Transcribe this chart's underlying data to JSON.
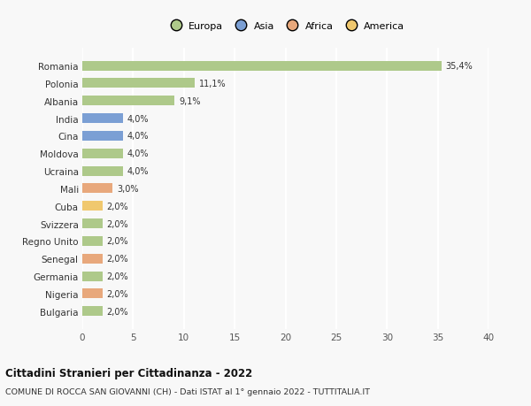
{
  "categories": [
    "Romania",
    "Polonia",
    "Albania",
    "India",
    "Cina",
    "Moldova",
    "Ucraina",
    "Mali",
    "Cuba",
    "Svizzera",
    "Regno Unito",
    "Senegal",
    "Germania",
    "Nigeria",
    "Bulgaria"
  ],
  "values": [
    35.4,
    11.1,
    9.1,
    4.0,
    4.0,
    4.0,
    4.0,
    3.0,
    2.0,
    2.0,
    2.0,
    2.0,
    2.0,
    2.0,
    2.0
  ],
  "labels": [
    "35,4%",
    "11,1%",
    "9,1%",
    "4,0%",
    "4,0%",
    "4,0%",
    "4,0%",
    "3,0%",
    "2,0%",
    "2,0%",
    "2,0%",
    "2,0%",
    "2,0%",
    "2,0%",
    "2,0%"
  ],
  "colors": [
    "#aec98a",
    "#aec98a",
    "#aec98a",
    "#7b9fd4",
    "#7b9fd4",
    "#aec98a",
    "#aec98a",
    "#e8a87c",
    "#f0c86e",
    "#aec98a",
    "#aec98a",
    "#e8a87c",
    "#aec98a",
    "#e8a87c",
    "#aec98a"
  ],
  "legend_labels": [
    "Europa",
    "Asia",
    "Africa",
    "America"
  ],
  "legend_colors": [
    "#aec98a",
    "#7b9fd4",
    "#e8a87c",
    "#f0c86e"
  ],
  "xlim": [
    0,
    40
  ],
  "xticks": [
    0,
    5,
    10,
    15,
    20,
    25,
    30,
    35,
    40
  ],
  "title": "Cittadini Stranieri per Cittadinanza - 2022",
  "subtitle": "COMUNE DI ROCCA SAN GIOVANNI (CH) - Dati ISTAT al 1° gennaio 2022 - TUTTITALIA.IT",
  "bg_color": "#f8f8f8",
  "grid_color": "#ffffff",
  "bar_height": 0.55
}
